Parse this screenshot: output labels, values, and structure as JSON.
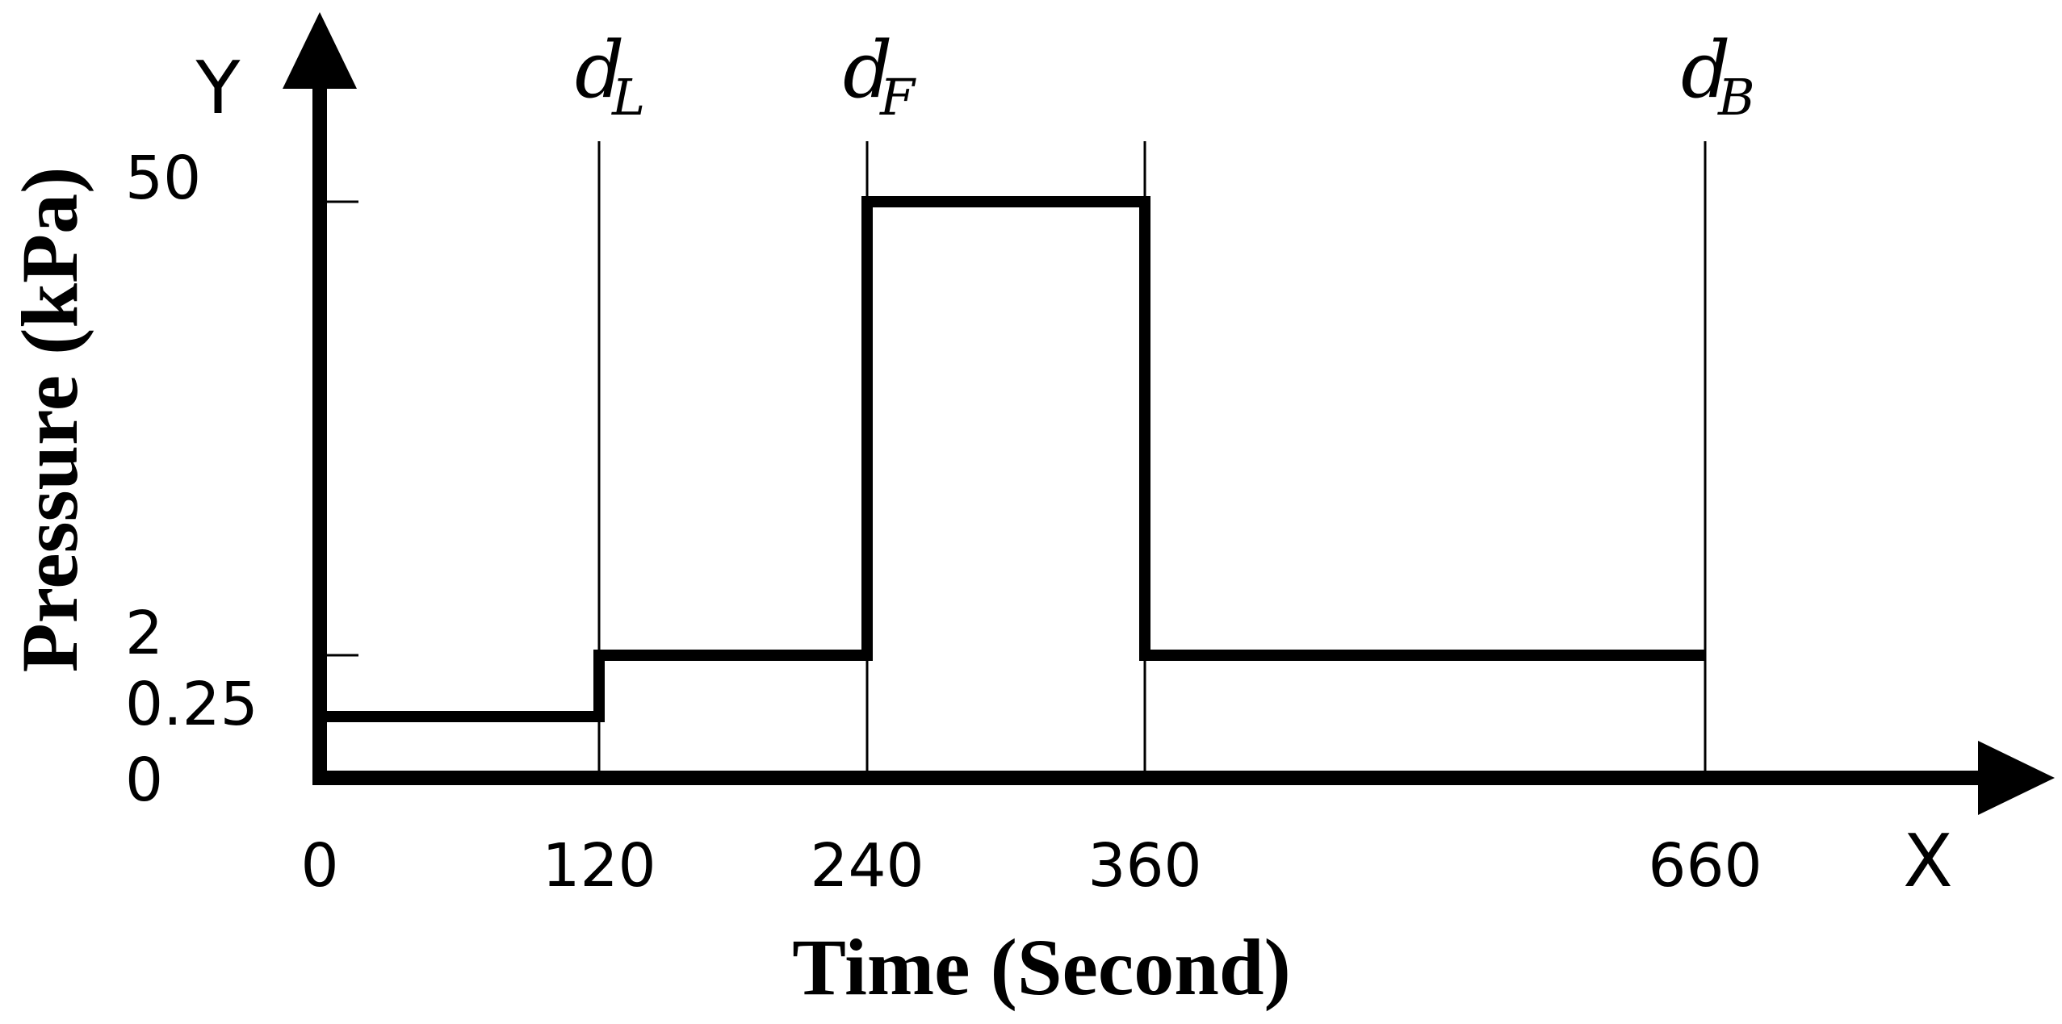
{
  "chart_data": {
    "type": "line",
    "step": true,
    "xlabel": "Time (Second)",
    "ylabel": "Pressure (kPa)",
    "x_axis_letter": "X",
    "y_axis_letter": "Y",
    "x_ticks": [
      0,
      120,
      240,
      360,
      660
    ],
    "x_tick_labels": [
      "0",
      "120",
      "240",
      "360",
      "660"
    ],
    "y_tick_labels": [
      "0",
      "0.25",
      "2",
      "50"
    ],
    "series": [
      {
        "x": [
          0,
          120,
          120,
          240,
          240,
          360,
          360,
          660
        ],
        "y": [
          0.25,
          0.25,
          2,
          2,
          50,
          50,
          2,
          2
        ]
      }
    ],
    "markers": [
      {
        "x": 120,
        "symbol": "d",
        "sub": "L"
      },
      {
        "x": 240,
        "symbol": "d",
        "sub": "F"
      },
      {
        "x": 360,
        "symbol": "",
        "sub": ""
      },
      {
        "x": 660,
        "symbol": "d",
        "sub": "B"
      }
    ],
    "y_scale": "non-uniform",
    "grid": false,
    "legend": "none"
  }
}
